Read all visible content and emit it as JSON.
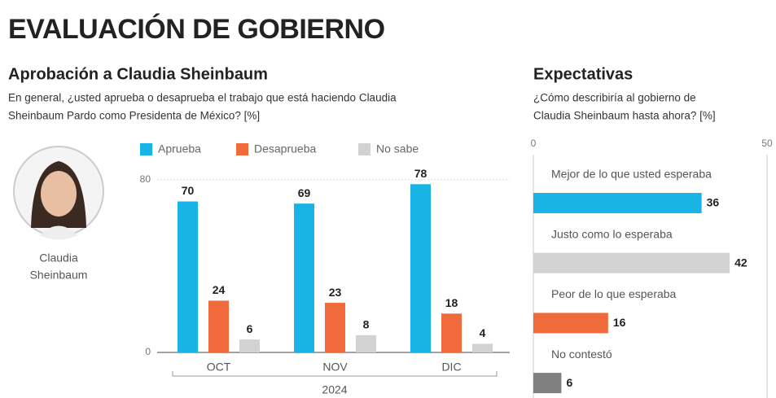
{
  "title": "EVALUACIÓN DE GOBIERNO",
  "photo_caption": [
    "Claudia",
    "Sheinbaum"
  ],
  "chart_data": [
    {
      "type": "bar",
      "title": "Aprobación a Claudia Sheinbaum",
      "subtitle": [
        "En general, ¿usted aprueba o desaprueba el trabajo que está haciendo Claudia",
        "Sheinbaum Pardo como Presidenta de México?  [%]"
      ],
      "categories": [
        "OCT",
        "NOV",
        "DIC"
      ],
      "xlabel": "2024",
      "series": [
        {
          "name": "Aprueba",
          "color": "#19b4e6",
          "values": [
            70,
            69,
            78
          ]
        },
        {
          "name": "Desaprueba",
          "color": "#f06a3c",
          "values": [
            24,
            23,
            18
          ]
        },
        {
          "name": "No sabe",
          "color": "#d2d2d2",
          "values": [
            6,
            8,
            4
          ]
        }
      ],
      "ylim": [
        0,
        80
      ],
      "yticks": [
        0,
        80
      ],
      "grid": true
    },
    {
      "type": "barh",
      "title": "Expectativas",
      "subtitle": [
        "¿Cómo describiría al gobierno de",
        "Claudia Sheinbaum hasta ahora?  [%]"
      ],
      "categories": [
        "Mejor de lo que usted esperaba",
        "Justo como lo esperaba",
        "Peor de lo que esperaba",
        "No contestó"
      ],
      "values": [
        36,
        42,
        16,
        6
      ],
      "colors": [
        "#19b4e6",
        "#d2d2d2",
        "#f06a3c",
        "#808080"
      ],
      "xlim": [
        0,
        50
      ],
      "xticks": [
        0,
        50
      ],
      "grid": true
    }
  ]
}
